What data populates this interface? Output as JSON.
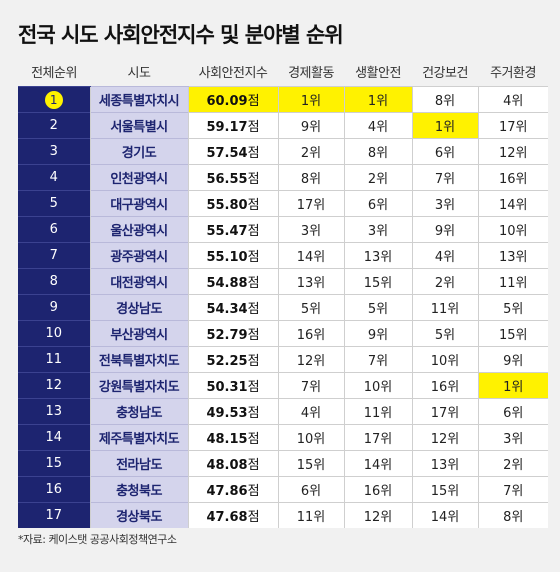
{
  "chart_data": {
    "type": "table",
    "title": "전국 시도 사회안전지수 및 분야별 순위",
    "source": "*자료: 케이스탯 공공사회정책연구소",
    "columns": [
      "전체순위",
      "시도",
      "사회안전지수",
      "경제활동",
      "생활안전",
      "건강보건",
      "주거환경"
    ],
    "score_unit": "점",
    "rank_unit": "위",
    "highlight_color": "#fff200",
    "rank_column_color": "#1d2470",
    "region_column_color": "#d4d4ec",
    "rows": [
      {
        "rank": "1",
        "region": "세종특별자치시",
        "score": "60.09",
        "economic": 1,
        "living": 1,
        "health": 8,
        "housing": 4,
        "highlight": [
          "score",
          "economic",
          "living"
        ]
      },
      {
        "rank": "2",
        "region": "서울특별시",
        "score": "59.17",
        "economic": 9,
        "living": 4,
        "health": 1,
        "housing": 17,
        "highlight": [
          "health"
        ]
      },
      {
        "rank": "3",
        "region": "경기도",
        "score": "57.54",
        "economic": 2,
        "living": 8,
        "health": 6,
        "housing": 12,
        "highlight": []
      },
      {
        "rank": "4",
        "region": "인천광역시",
        "score": "56.55",
        "economic": 8,
        "living": 2,
        "health": 7,
        "housing": 16,
        "highlight": []
      },
      {
        "rank": "5",
        "region": "대구광역시",
        "score": "55.80",
        "economic": 17,
        "living": 6,
        "health": 3,
        "housing": 14,
        "highlight": []
      },
      {
        "rank": "6",
        "region": "울산광역시",
        "score": "55.47",
        "economic": 3,
        "living": 3,
        "health": 9,
        "housing": 10,
        "highlight": []
      },
      {
        "rank": "7",
        "region": "광주광역시",
        "score": "55.10",
        "economic": 14,
        "living": 13,
        "health": 4,
        "housing": 13,
        "highlight": []
      },
      {
        "rank": "8",
        "region": "대전광역시",
        "score": "54.88",
        "economic": 13,
        "living": 15,
        "health": 2,
        "housing": 11,
        "highlight": []
      },
      {
        "rank": "9",
        "region": "경상남도",
        "score": "54.34",
        "economic": 5,
        "living": 5,
        "health": 11,
        "housing": 5,
        "highlight": []
      },
      {
        "rank": "10",
        "region": "부산광역시",
        "score": "52.79",
        "economic": 16,
        "living": 9,
        "health": 5,
        "housing": 15,
        "highlight": []
      },
      {
        "rank": "11",
        "region": "전북특별자치도",
        "score": "52.25",
        "economic": 12,
        "living": 7,
        "health": 10,
        "housing": 9,
        "highlight": []
      },
      {
        "rank": "12",
        "region": "강원특별자치도",
        "score": "50.31",
        "economic": 7,
        "living": 10,
        "health": 16,
        "housing": 1,
        "highlight": [
          "housing"
        ]
      },
      {
        "rank": "13",
        "region": "충청남도",
        "score": "49.53",
        "economic": 4,
        "living": 11,
        "health": 17,
        "housing": 6,
        "highlight": []
      },
      {
        "rank": "14",
        "region": "제주특별자치도",
        "score": "48.15",
        "economic": 10,
        "living": 17,
        "health": 12,
        "housing": 3,
        "highlight": []
      },
      {
        "rank": "15",
        "region": "전라남도",
        "score": "48.08",
        "economic": 15,
        "living": 14,
        "health": 13,
        "housing": 2,
        "highlight": []
      },
      {
        "rank": "16",
        "region": "충청북도",
        "score": "47.86",
        "economic": 6,
        "living": 16,
        "health": 15,
        "housing": 7,
        "highlight": []
      },
      {
        "rank": "17",
        "region": "경상북도",
        "score": "47.68",
        "economic": 11,
        "living": 12,
        "health": 14,
        "housing": 8,
        "highlight": []
      }
    ]
  }
}
